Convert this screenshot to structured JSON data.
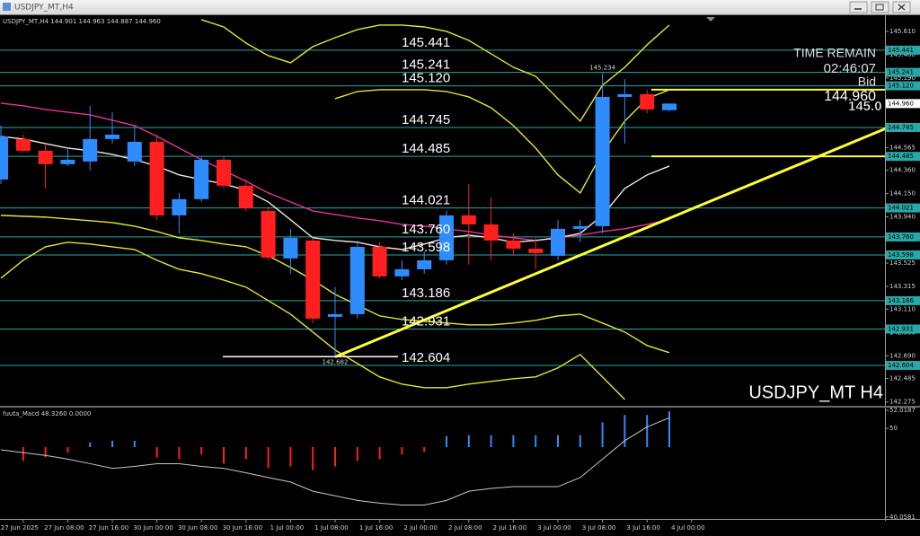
{
  "window": {
    "title": "USDJPY_MT,H4"
  },
  "chart_data": [
    {
      "type": "candlestick",
      "title": "USDJPY_MT,H4 144.901 144.963 144.887 144.960",
      "watermark": "USDJPY_MT H4",
      "categories": [
        null,
        "27 Jun 2025",
        null,
        "27 Jun 08:00",
        null,
        "27 Jun 16:00",
        null,
        "30 Jun 00:00",
        null,
        "30 Jun 08:00",
        null,
        "30 Jun 16:00",
        null,
        "1 Jul 00:00",
        null,
        "1 Jul 08:00",
        null,
        "1 Jul 16:00",
        null,
        "2 Jul 00:00",
        null,
        "2 Jul 08:00",
        null,
        "2 Jul 16:00",
        null,
        "3 Jul 00:00",
        null,
        "3 Jul 08:00",
        null,
        "3 Jul 16:00",
        null,
        "4 Jul 00:00"
      ],
      "open": [
        144.277,
        144.641,
        144.536,
        144.415,
        144.439,
        144.641,
        144.439,
        144.616,
        143.954,
        144.1,
        144.455,
        144.221,
        143.994,
        143.566,
        143.728,
        143.041,
        143.065,
        143.671,
        143.405,
        143.469,
        143.55,
        143.954,
        143.873,
        143.728,
        143.655,
        143.59,
        143.833,
        143.857,
        145.02,
        145.045,
        144.901,
        null
      ],
      "high": [
        144.762,
        144.681,
        144.6,
        144.56,
        144.94,
        144.883,
        144.762,
        144.681,
        144.156,
        144.479,
        144.479,
        144.277,
        144.035,
        143.833,
        143.752,
        143.308,
        143.728,
        143.712,
        143.55,
        143.631,
        143.994,
        144.237,
        144.116,
        143.792,
        143.752,
        143.914,
        143.914,
        145.234,
        145.18,
        145.085,
        144.963,
        null
      ],
      "low": [
        144.237,
        144.52,
        144.196,
        144.398,
        144.358,
        144.6,
        144.398,
        143.914,
        143.792,
        144.076,
        144.196,
        143.994,
        143.55,
        143.429,
        142.985,
        142.682,
        143.025,
        143.388,
        143.372,
        143.429,
        143.51,
        143.51,
        143.55,
        143.59,
        143.469,
        143.55,
        143.712,
        143.792,
        144.6,
        144.875,
        144.887,
        null
      ],
      "close": [
        144.665,
        144.536,
        144.415,
        144.455,
        144.641,
        144.681,
        144.616,
        143.954,
        144.1,
        144.455,
        144.221,
        144.019,
        143.574,
        143.752,
        143.025,
        143.065,
        143.671,
        143.405,
        143.469,
        143.55,
        143.954,
        143.873,
        143.728,
        143.655,
        143.615,
        143.833,
        143.857,
        145.02,
        145.045,
        144.907,
        144.96,
        null
      ],
      "up_color": "#2f8cff",
      "down_color": "#ff1f1f",
      "overlays": [
        {
          "color": "#e6e62e",
          "values": [
            null,
            null,
            null,
            null,
            null,
            null,
            null,
            null,
            null,
            145.715,
            145.65,
            145.505,
            145.392,
            145.327,
            145.473,
            145.553,
            145.626,
            145.667,
            145.667,
            145.65,
            145.61,
            145.529,
            145.408,
            145.287,
            145.206,
            145.004,
            144.802,
            145.125,
            145.287,
            145.489,
            145.667,
            null
          ]
        },
        {
          "color": "#e6e62e",
          "values": [
            null,
            null,
            null,
            null,
            null,
            null,
            null,
            null,
            null,
            null,
            null,
            null,
            null,
            null,
            null,
            145.004,
            145.069,
            145.085,
            145.085,
            145.085,
            145.069,
            145.02,
            144.923,
            144.762,
            144.56,
            144.318,
            144.156,
            144.52,
            144.802,
            145.004,
            145.085,
            null
          ]
        },
        {
          "color": "#e6e62e",
          "values": [
            143.954,
            143.946,
            143.938,
            143.922,
            143.906,
            143.889,
            143.857,
            143.809,
            143.752,
            143.728,
            143.696,
            143.671,
            143.59,
            143.485,
            143.372,
            143.243,
            143.146,
            143.049,
            143.017,
            143.001,
            142.985,
            142.969,
            142.969,
            142.985,
            143.009,
            143.049,
            143.065,
            142.985,
            142.904,
            142.783,
            142.718,
            null
          ]
        },
        {
          "color": "#e6e62e",
          "values": [
            143.388,
            143.55,
            143.671,
            143.712,
            143.696,
            143.671,
            143.647,
            143.55,
            143.469,
            143.429,
            143.372,
            143.308,
            143.187,
            143.065,
            142.904,
            142.742,
            142.621,
            142.5,
            142.435,
            142.403,
            142.403,
            142.435,
            142.46,
            142.484,
            142.5,
            142.581,
            142.702,
            142.5,
            142.298,
            null,
            null,
            null
          ]
        },
        {
          "color": "#e8329a",
          "values": [
            144.964,
            144.94,
            144.907,
            144.883,
            144.859,
            144.81,
            144.762,
            144.665,
            144.56,
            144.455,
            144.358,
            144.261,
            144.156,
            144.075,
            143.994,
            143.962,
            143.93,
            143.906,
            143.873,
            143.857,
            143.833,
            143.809,
            143.776,
            143.752,
            143.728,
            143.752,
            143.776,
            143.809,
            143.833,
            143.873,
            143.914,
            null
          ]
        },
        {
          "color": "#f5e6dc",
          "values": [
            144.665,
            144.641,
            144.6,
            144.56,
            144.536,
            144.503,
            144.455,
            144.398,
            144.318,
            144.277,
            144.237,
            144.18,
            144.075,
            143.914,
            143.752,
            143.728,
            143.712,
            143.671,
            143.647,
            143.696,
            143.752,
            143.776,
            143.752,
            143.712,
            143.728,
            143.752,
            143.792,
            143.954,
            144.196,
            144.318,
            144.398,
            null
          ]
        }
      ],
      "levels": [
        {
          "value": 145.441,
          "label": "145.441"
        },
        {
          "value": 145.241,
          "label": "145.241"
        },
        {
          "value": 145.12,
          "label": "145.120"
        },
        {
          "value": 144.745,
          "label": "144.745"
        },
        {
          "value": 144.485,
          "label": "144.485"
        },
        {
          "value": 144.021,
          "label": "144.021"
        },
        {
          "value": 143.76,
          "label": "143.760"
        },
        {
          "value": 143.598,
          "label": "143.598"
        },
        {
          "value": 143.186,
          "label": "143.186"
        },
        {
          "value": 142.931,
          "label": "142.931"
        },
        {
          "value": 142.604,
          "label": "142.604"
        }
      ],
      "level_color": "#2aa7a7",
      "marker_lines": [
        {
          "value": 145.085,
          "color": "#ffff33"
        },
        {
          "value": 144.485,
          "color": "#ffff33"
        }
      ],
      "trendline": {
        "x": [
          15,
          40
        ],
        "y": [
          142.68,
          144.76
        ],
        "color": "#ffff33"
      },
      "extremes": [
        {
          "value": 145.234,
          "label": "145.234"
        },
        {
          "value": 142.682,
          "label": "142.682"
        }
      ],
      "bid": {
        "value": 144.96,
        "label": "144.960"
      },
      "time_remain": {
        "label": "TIME REMAIN",
        "value": "02:46:07",
        "bid_label": "Bid"
      },
      "big_price": "145.0",
      "ylim": [
        142.24,
        145.755
      ],
      "yticks": [
        {
          "value": 145.61,
          "label": "145.610"
        },
        {
          "value": 145.4,
          "label": "145.400"
        },
        {
          "value": 145.19,
          "label": "145.190"
        },
        144.565,
        {
          "value": 144.36,
          "label": "144.360"
        },
        {
          "value": 144.15,
          "label": "144.150"
        },
        {
          "value": 143.94,
          "label": "143.940"
        },
        143.735,
        143.525,
        143.315,
        {
          "value": 143.11,
          "label": "143.110"
        },
        {
          "value": 142.9,
          "label": "142.900"
        },
        {
          "value": 142.69,
          "label": "142.690"
        },
        142.485,
        142.275
      ]
    },
    {
      "type": "bar",
      "title": "fuuta_Macd 48.3260 0.0000",
      "series": [
        {
          "color": "#2f8cff",
          "values": [
            null,
            null,
            null,
            null,
            48.41,
            48.62,
            48.62,
            null,
            null,
            null,
            null,
            null,
            null,
            null,
            null,
            null,
            null,
            null,
            null,
            null,
            49.13,
            49.24,
            49.24,
            49.24,
            49.24,
            49.24,
            49.24,
            50.68,
            51.5,
            51.5,
            51.92,
            null
          ]
        },
        {
          "color": "#ff1f1f",
          "values": [
            null,
            46.35,
            46.76,
            47.28,
            null,
            null,
            null,
            46.76,
            46.55,
            47.07,
            46.04,
            46.55,
            45.52,
            45.73,
            45.32,
            45.73,
            46.35,
            46.55,
            47.07,
            47.38,
            null,
            null,
            null,
            null,
            null,
            null,
            null,
            null,
            null,
            null,
            null,
            null
          ]
        }
      ],
      "line": {
        "color": "#c8c8c8",
        "values": [
          47.59,
          47.28,
          46.97,
          46.55,
          46.04,
          45.52,
          45.73,
          46.04,
          46.04,
          45.73,
          45.52,
          45.01,
          44.49,
          43.98,
          42.95,
          42.43,
          41.92,
          41.61,
          41.4,
          41.4,
          41.92,
          42.95,
          43.26,
          43.46,
          43.46,
          43.46,
          44.49,
          46.55,
          48.62,
          50.16,
          51.19,
          null
        ]
      },
      "ylim": [
        39.84,
        52.33
      ],
      "yticks": [
        52.0187,
        50,
        40.0581
      ]
    }
  ]
}
